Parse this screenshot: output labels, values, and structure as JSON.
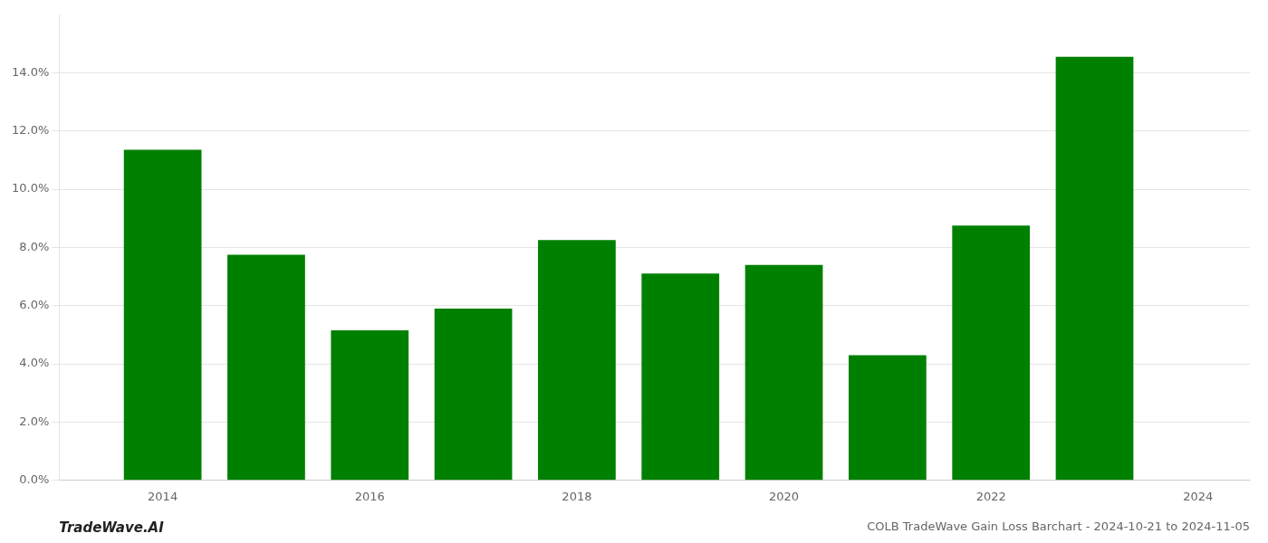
{
  "chart_data": {
    "type": "bar",
    "title": "COLB TradeWave Gain Loss Barchart - 2024-10-21 to 2024-11-05",
    "annotations": [
      "TradeWave.AI"
    ],
    "x": [
      2014,
      2015,
      2016,
      2017,
      2018,
      2019,
      2020,
      2021,
      2022,
      2023
    ],
    "values": [
      0.1135,
      0.0775,
      0.0515,
      0.059,
      0.0825,
      0.071,
      0.074,
      0.043,
      0.0875,
      0.1455
    ],
    "color": "#008000",
    "xlim": [
      2013.0,
      2024.5
    ],
    "xticks": [
      2014,
      2016,
      2018,
      2020,
      2022,
      2024
    ],
    "ylim": [
      0,
      0.16
    ],
    "yticks": [
      {
        "value": 0.0,
        "label": "0.0%"
      },
      {
        "value": 0.02,
        "label": "2.0%"
      },
      {
        "value": 0.04,
        "label": "4.0%"
      },
      {
        "value": 0.06,
        "label": "6.0%"
      },
      {
        "value": 0.08,
        "label": "8.0%"
      },
      {
        "value": 0.1,
        "label": "10.0%"
      },
      {
        "value": 0.12,
        "label": "12.0%"
      },
      {
        "value": 0.14,
        "label": "14.0%"
      }
    ],
    "grid": true
  }
}
